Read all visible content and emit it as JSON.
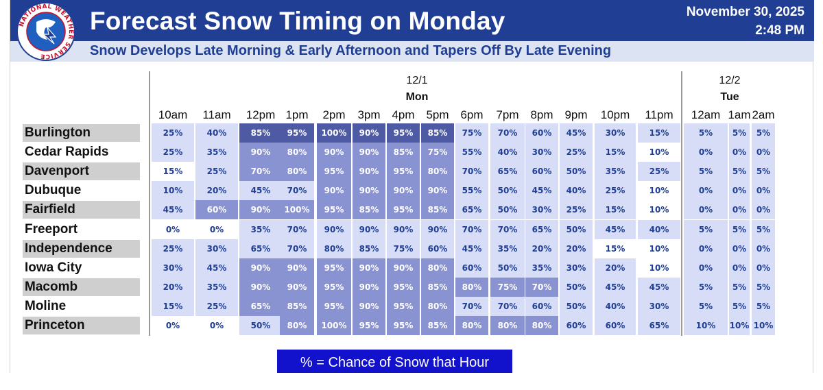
{
  "header": {
    "title": "Forecast Snow Timing on Monday",
    "date": "November 30, 2025",
    "time": "2:48 PM",
    "subtitle": "Snow Develops Late Morning & Early Afternoon and Tapers Off By Late Evening",
    "logo_text": "NATIONAL WEATHER SERVICE"
  },
  "colors": {
    "header_bg": "#1f3e94",
    "subtitle_band": "#dce4f3",
    "prob_levels": [
      "#ffffff",
      "#d7ddf7",
      "#8a93d2",
      "#4f5aa5"
    ],
    "legend_bg": "#1212cc"
  },
  "table": {
    "days": [
      {
        "date": "12/1",
        "name": "Mon"
      },
      {
        "date": "12/2",
        "name": "Tue"
      }
    ],
    "hours": [
      "10am",
      "11am",
      "12pm",
      "1pm",
      "2pm",
      "3pm",
      "4pm",
      "5pm",
      "6pm",
      "7pm",
      "8pm",
      "9pm",
      "10pm",
      "11pm",
      "12am",
      "1am",
      "2am"
    ],
    "rows": [
      {
        "city": "Burlington",
        "values": [
          "25%",
          "40%",
          "85%",
          "95%",
          "100%",
          "90%",
          "95%",
          "85%",
          "75%",
          "70%",
          "60%",
          "45%",
          "30%",
          "15%",
          "5%",
          "5%",
          "5%"
        ],
        "levels": [
          1,
          1,
          3,
          3,
          3,
          3,
          3,
          3,
          1,
          1,
          1,
          1,
          1,
          1,
          1,
          1,
          1
        ]
      },
      {
        "city": "Cedar Rapids",
        "values": [
          "25%",
          "35%",
          "90%",
          "80%",
          "90%",
          "90%",
          "85%",
          "75%",
          "55%",
          "40%",
          "30%",
          "25%",
          "15%",
          "10%",
          "0%",
          "0%",
          "0%"
        ],
        "levels": [
          1,
          1,
          2,
          2,
          2,
          2,
          2,
          2,
          1,
          1,
          1,
          1,
          1,
          0,
          1,
          1,
          1
        ]
      },
      {
        "city": "Davenport",
        "values": [
          "15%",
          "25%",
          "70%",
          "80%",
          "95%",
          "90%",
          "95%",
          "80%",
          "70%",
          "65%",
          "60%",
          "50%",
          "35%",
          "25%",
          "5%",
          "5%",
          "5%"
        ],
        "levels": [
          0,
          1,
          2,
          2,
          2,
          2,
          2,
          2,
          1,
          1,
          1,
          1,
          1,
          1,
          1,
          1,
          1
        ]
      },
      {
        "city": "Dubuque",
        "values": [
          "10%",
          "20%",
          "45%",
          "70%",
          "90%",
          "90%",
          "90%",
          "90%",
          "55%",
          "50%",
          "45%",
          "40%",
          "25%",
          "10%",
          "0%",
          "0%",
          "0%"
        ],
        "levels": [
          1,
          1,
          1,
          1,
          2,
          2,
          2,
          2,
          1,
          1,
          1,
          1,
          1,
          0,
          1,
          1,
          1
        ]
      },
      {
        "city": "Fairfield",
        "values": [
          "45%",
          "60%",
          "90%",
          "100%",
          "95%",
          "85%",
          "95%",
          "85%",
          "65%",
          "50%",
          "30%",
          "25%",
          "15%",
          "10%",
          "0%",
          "0%",
          "0%"
        ],
        "levels": [
          1,
          2,
          2,
          2,
          2,
          2,
          2,
          2,
          1,
          1,
          1,
          1,
          1,
          0,
          1,
          1,
          1
        ]
      },
      {
        "city": "Freeport",
        "values": [
          "0%",
          "0%",
          "35%",
          "70%",
          "90%",
          "90%",
          "90%",
          "90%",
          "70%",
          "70%",
          "65%",
          "50%",
          "45%",
          "40%",
          "5%",
          "5%",
          "5%"
        ],
        "levels": [
          0,
          0,
          1,
          1,
          1,
          1,
          1,
          1,
          1,
          1,
          1,
          1,
          1,
          1,
          1,
          1,
          1
        ]
      },
      {
        "city": "Independence",
        "values": [
          "25%",
          "30%",
          "65%",
          "70%",
          "80%",
          "85%",
          "75%",
          "60%",
          "45%",
          "35%",
          "20%",
          "20%",
          "15%",
          "10%",
          "0%",
          "0%",
          "0%"
        ],
        "levels": [
          1,
          1,
          1,
          1,
          1,
          1,
          1,
          1,
          1,
          1,
          1,
          1,
          0,
          0,
          1,
          1,
          1
        ]
      },
      {
        "city": "Iowa City",
        "values": [
          "30%",
          "45%",
          "90%",
          "90%",
          "95%",
          "90%",
          "90%",
          "80%",
          "60%",
          "50%",
          "35%",
          "30%",
          "20%",
          "10%",
          "0%",
          "0%",
          "0%"
        ],
        "levels": [
          1,
          1,
          2,
          2,
          2,
          2,
          2,
          2,
          1,
          1,
          1,
          1,
          1,
          0,
          1,
          1,
          1
        ]
      },
      {
        "city": "Macomb",
        "values": [
          "20%",
          "35%",
          "90%",
          "90%",
          "95%",
          "90%",
          "95%",
          "85%",
          "80%",
          "75%",
          "70%",
          "50%",
          "45%",
          "45%",
          "5%",
          "5%",
          "5%"
        ],
        "levels": [
          1,
          1,
          2,
          2,
          2,
          2,
          2,
          2,
          2,
          2,
          2,
          1,
          1,
          1,
          1,
          1,
          1
        ]
      },
      {
        "city": "Moline",
        "values": [
          "15%",
          "25%",
          "65%",
          "85%",
          "95%",
          "90%",
          "95%",
          "80%",
          "70%",
          "70%",
          "60%",
          "50%",
          "40%",
          "30%",
          "5%",
          "5%",
          "5%"
        ],
        "levels": [
          1,
          1,
          2,
          2,
          2,
          2,
          2,
          2,
          1,
          1,
          1,
          1,
          1,
          1,
          1,
          1,
          1
        ]
      },
      {
        "city": "Princeton",
        "values": [
          "0%",
          "0%",
          "50%",
          "80%",
          "100%",
          "95%",
          "95%",
          "85%",
          "80%",
          "80%",
          "80%",
          "60%",
          "60%",
          "65%",
          "10%",
          "10%",
          "10%"
        ],
        "levels": [
          0,
          0,
          1,
          2,
          2,
          2,
          2,
          2,
          2,
          2,
          2,
          1,
          1,
          1,
          1,
          1,
          1
        ]
      }
    ]
  },
  "legend": {
    "text": "% = Chance of Snow that Hour"
  }
}
